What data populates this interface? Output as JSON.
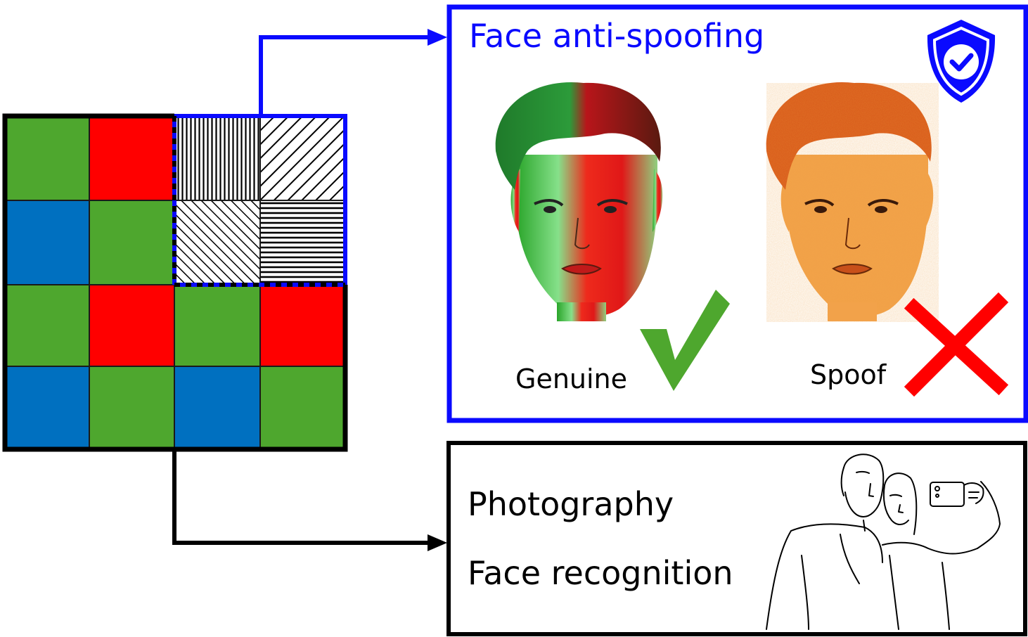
{
  "anti_spoof_panel": {
    "title": "Face anti-spoofing",
    "genuine_label": "Genuine",
    "spoof_label": "Spoof",
    "border_color": "#0a0aff",
    "shield_icon": "shield-check-icon",
    "check_icon": "checkmark-icon",
    "cross_icon": "cross-icon"
  },
  "photo_panel": {
    "line1": "Photography",
    "line2": "Face recognition",
    "border_color": "#000000",
    "illustration": "selfie-couple-line-drawing"
  },
  "mosaic": {
    "colors": {
      "green": "#4ea72e",
      "red": "#ff0000",
      "blue": "#0070c0"
    },
    "grid": [
      [
        "green",
        "red",
        "vertical-stripes",
        "diagonal-stripes"
      ],
      [
        "blue",
        "green",
        "diagonal-stripes-dense",
        "horizontal-stripes"
      ],
      [
        "green",
        "red",
        "green",
        "red"
      ],
      [
        "blue",
        "green",
        "blue",
        "green"
      ]
    ]
  }
}
